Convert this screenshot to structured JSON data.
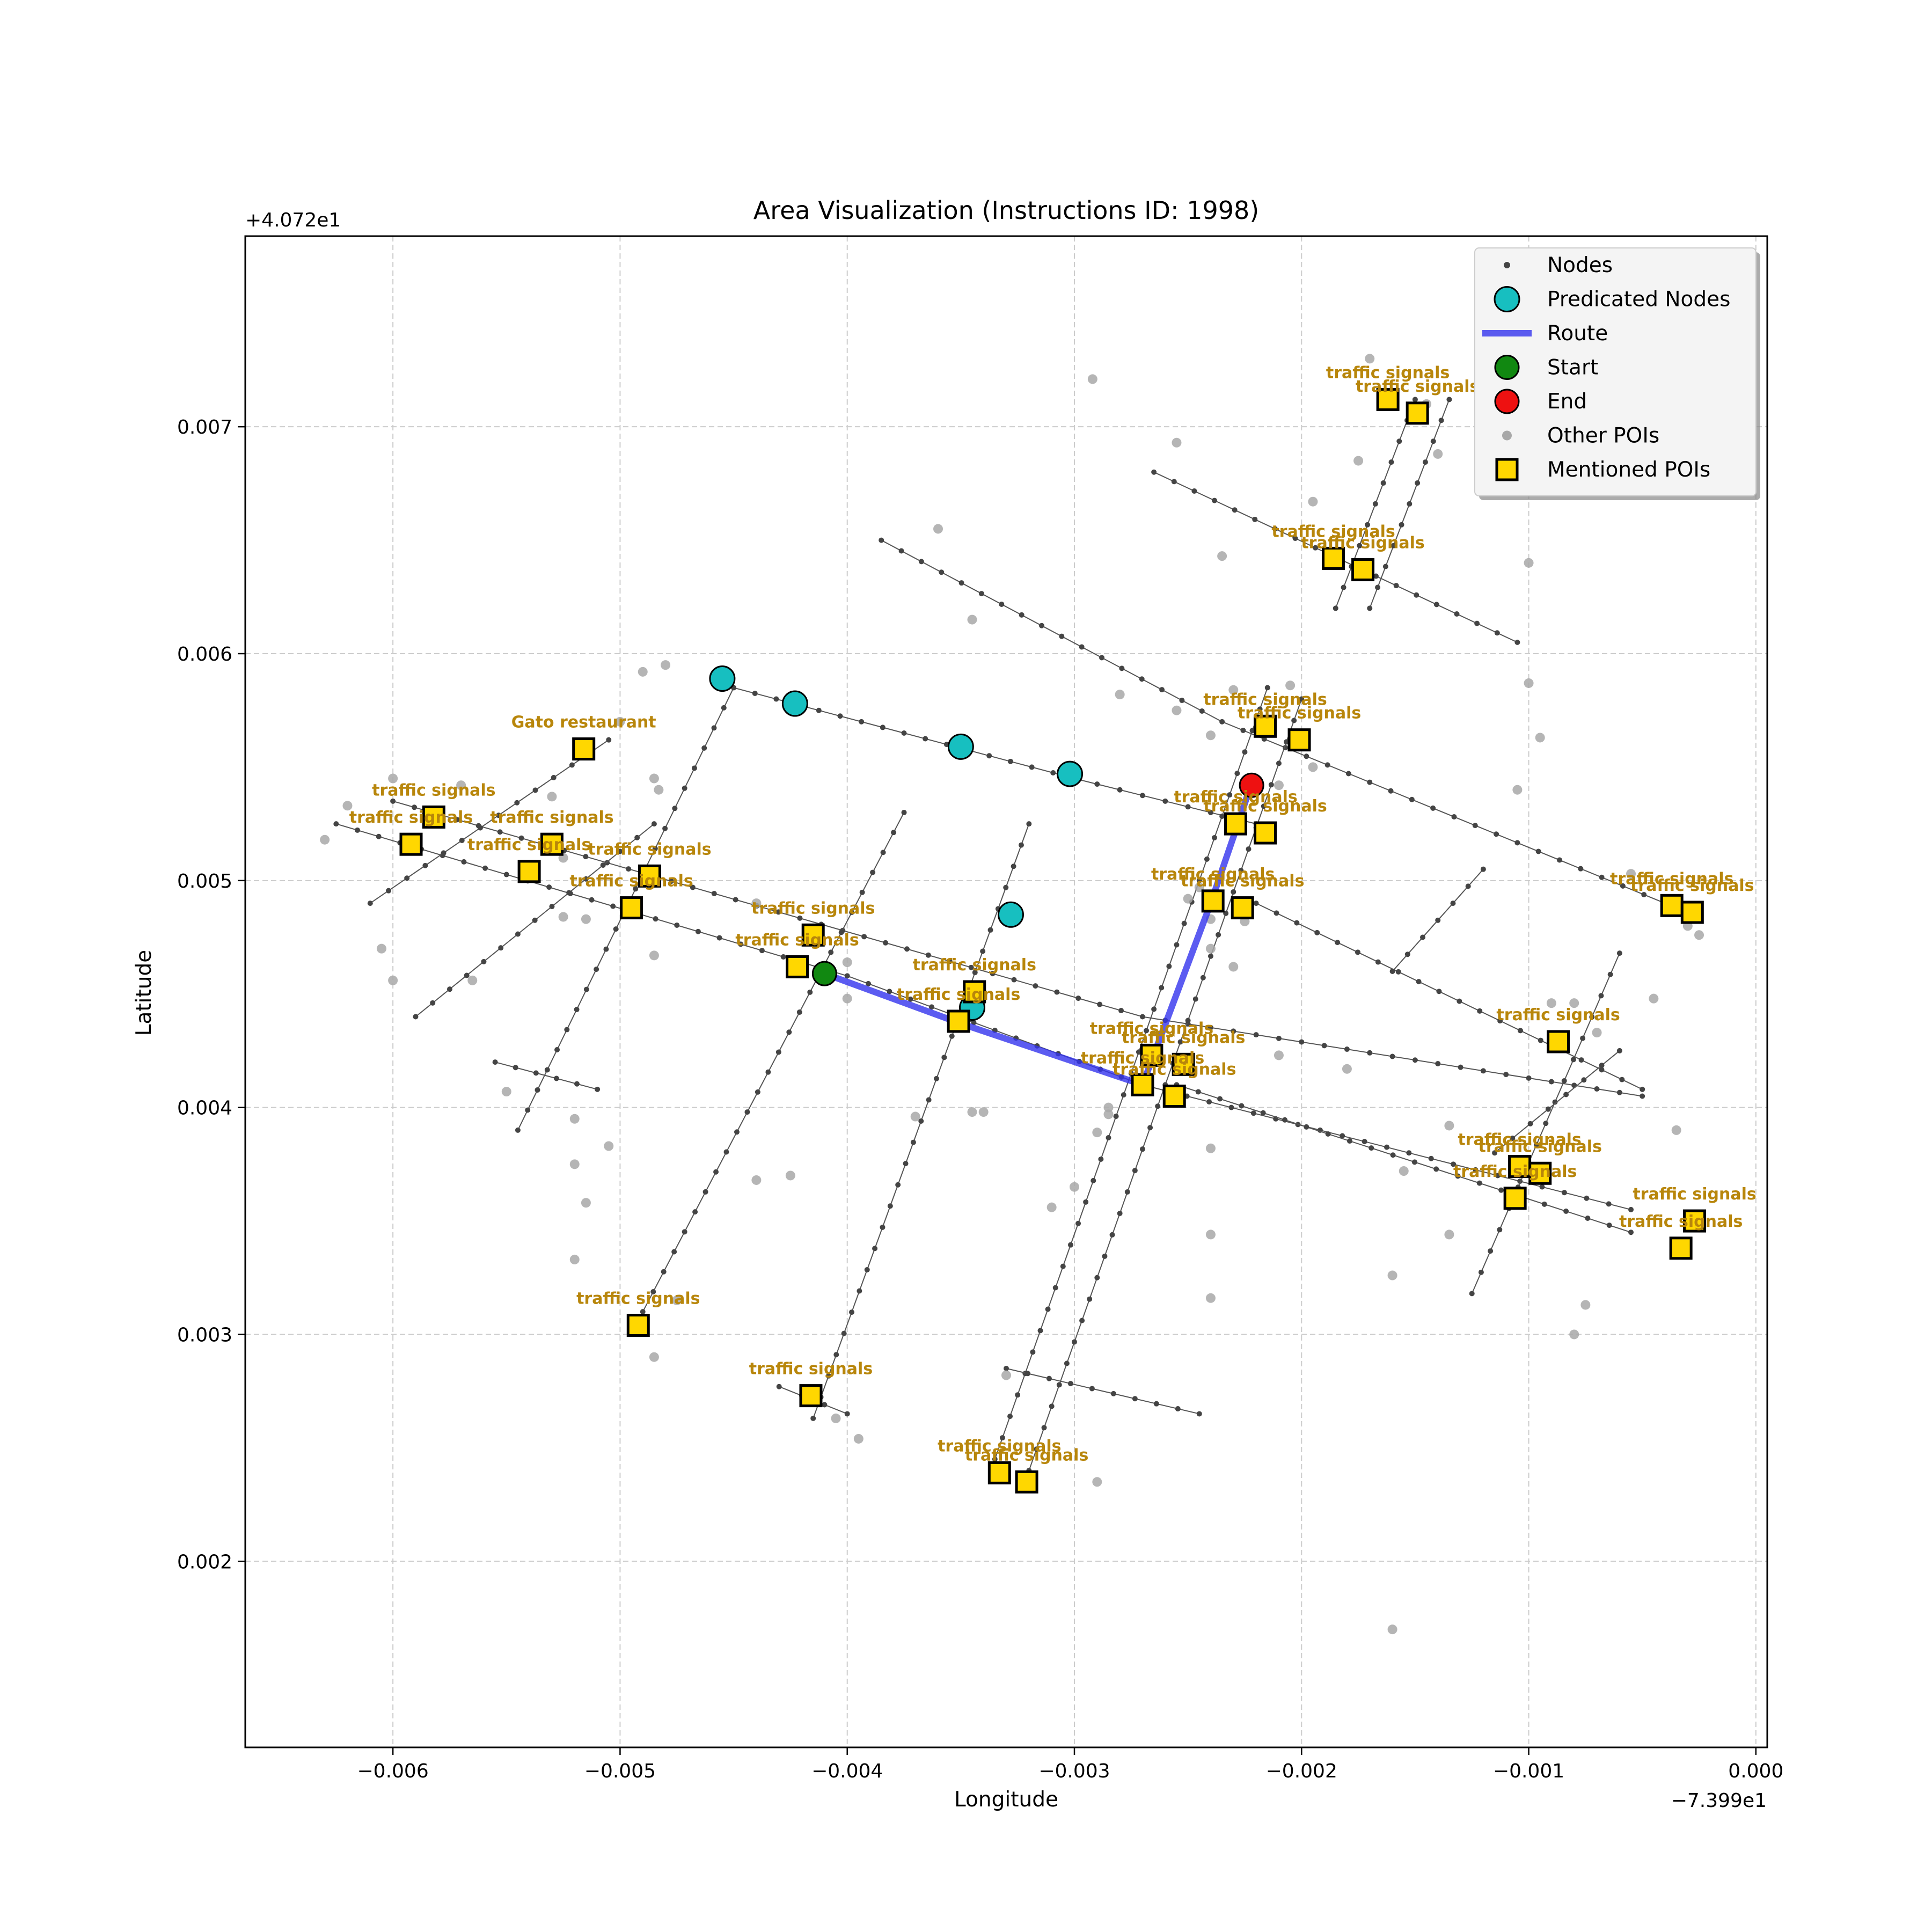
{
  "chart_data": {
    "type": "scatter",
    "title": "Area Visualization (Instructions ID: 1998)",
    "xlabel": "Longitude",
    "ylabel": "Latitude",
    "x_offset_label": "−7.399e1",
    "y_offset_label": "+4.072e1",
    "xlim": [
      -0.00665,
      5e-05
    ],
    "ylim": [
      0.00118,
      0.00784
    ],
    "x_ticks": [
      -0.006,
      -0.005,
      -0.004,
      -0.003,
      -0.002,
      -0.001,
      0.0
    ],
    "x_tick_labels": [
      "−0.006",
      "−0.005",
      "−0.004",
      "−0.003",
      "−0.002",
      "−0.001",
      "0.000"
    ],
    "y_ticks": [
      0.002,
      0.003,
      0.004,
      0.005,
      0.006,
      0.007
    ],
    "y_tick_labels": [
      "0.002",
      "0.003",
      "0.004",
      "0.005",
      "0.006",
      "0.007"
    ],
    "grid": true,
    "legend": {
      "position": "top-right",
      "entries": [
        {
          "label": "Nodes",
          "kind": "node"
        },
        {
          "label": "Predicated Nodes",
          "kind": "pred"
        },
        {
          "label": "Route",
          "kind": "route"
        },
        {
          "label": "Start",
          "kind": "start"
        },
        {
          "label": "End",
          "kind": "end"
        },
        {
          "label": "Other POIs",
          "kind": "other"
        },
        {
          "label": "Mentioned POIs",
          "kind": "poi"
        }
      ]
    },
    "colors": {
      "node": "#444444",
      "edge": "#555555",
      "predicated": "#17bfc0",
      "route": "#3333ee",
      "start": "#118811",
      "end": "#ee1111",
      "other_poi": "#a8a8a8",
      "mentioned_poi": "#ffd700",
      "poi_label": "#b8860b",
      "grid": "#cccccc"
    },
    "roads": [
      [
        [
          -0.00385,
          0.0065
        ],
        [
          -0.00235,
          0.0057
        ],
        [
          -0.0004,
          0.0049
        ]
      ],
      [
        [
          -0.0045,
          0.00585
        ],
        [
          -0.003,
          0.00545
        ],
        [
          -0.0022,
          0.00525
        ]
      ],
      [
        [
          -0.00625,
          0.00525
        ],
        [
          -0.004,
          0.00458
        ],
        [
          -0.0027,
          0.0041
        ],
        [
          -0.00055,
          0.00355
        ]
      ],
      [
        [
          -0.006,
          0.00535
        ],
        [
          -0.0027,
          0.0044
        ],
        [
          -0.0005,
          0.00405
        ]
      ],
      [
        [
          -0.0022,
          0.0049
        ],
        [
          -0.0005,
          0.00408
        ]
      ],
      [
        [
          -0.00255,
          0.0041
        ],
        [
          -0.00055,
          0.00345
        ]
      ],
      [
        [
          -0.00265,
          0.0068
        ],
        [
          -0.00105,
          0.00605
        ]
      ],
      [
        [
          -0.0061,
          0.0049
        ],
        [
          -0.00505,
          0.00562
        ]
      ],
      [
        [
          -0.0059,
          0.0044
        ],
        [
          -0.00485,
          0.00525
        ]
      ],
      [
        [
          -0.00545,
          0.0039
        ],
        [
          -0.0045,
          0.00585
        ]
      ],
      [
        [
          -0.0049,
          0.0031
        ],
        [
          -0.00375,
          0.0053
        ]
      ],
      [
        [
          -0.00415,
          0.00263
        ],
        [
          -0.0032,
          0.00525
        ]
      ],
      [
        [
          -0.0032,
          0.0024
        ],
        [
          -0.002,
          0.0058
        ]
      ],
      [
        [
          -0.00335,
          0.00245
        ],
        [
          -0.00215,
          0.00585
        ]
      ],
      [
        [
          -0.00185,
          0.0062
        ],
        [
          -0.0015,
          0.00712
        ]
      ],
      [
        [
          -0.0017,
          0.0062
        ],
        [
          -0.00135,
          0.00712
        ]
      ],
      [
        [
          -0.0033,
          0.00285
        ],
        [
          -0.00245,
          0.00265
        ]
      ],
      [
        [
          -0.00555,
          0.0042
        ],
        [
          -0.0051,
          0.00408
        ]
      ],
      [
        [
          -0.0043,
          0.00277
        ],
        [
          -0.004,
          0.00265
        ]
      ],
      [
        [
          -0.00125,
          0.00318
        ],
        [
          -0.0006,
          0.00468
        ]
      ],
      [
        [
          -0.00115,
          0.0038
        ],
        [
          -0.0006,
          0.00425
        ]
      ],
      [
        [
          -0.0016,
          0.0046
        ],
        [
          -0.0012,
          0.00505
        ]
      ]
    ],
    "other_pois": [
      [
        -0.0063,
        0.00518
      ],
      [
        -0.0062,
        0.00533
      ],
      [
        -0.006,
        0.00545
      ],
      [
        -0.0057,
        0.00542
      ],
      [
        -0.00605,
        0.0047
      ],
      [
        -0.006,
        0.00456
      ],
      [
        -0.00565,
        0.00456
      ],
      [
        -0.0055,
        0.00407
      ],
      [
        -0.0053,
        0.00537
      ],
      [
        -0.00525,
        0.0051
      ],
      [
        -0.00525,
        0.00484
      ],
      [
        -0.00515,
        0.00483
      ],
      [
        -0.0052,
        0.00395
      ],
      [
        -0.00505,
        0.00383
      ],
      [
        -0.0052,
        0.00375
      ],
      [
        -0.00515,
        0.00358
      ],
      [
        -0.0052,
        0.00333
      ],
      [
        -0.005,
        0.0057
      ],
      [
        -0.0049,
        0.00592
      ],
      [
        -0.0048,
        0.00595
      ],
      [
        -0.00485,
        0.00545
      ],
      [
        -0.00483,
        0.0054
      ],
      [
        -0.00485,
        0.00467
      ],
      [
        -0.00475,
        0.00315
      ],
      [
        -0.00485,
        0.0029
      ],
      [
        -0.00425,
        0.0037
      ],
      [
        -0.0044,
        0.00368
      ],
      [
        -0.0044,
        0.0049
      ],
      [
        -0.004,
        0.00464
      ],
      [
        -0.004,
        0.00448
      ],
      [
        -0.0037,
        0.00396
      ],
      [
        -0.0036,
        0.00655
      ],
      [
        -0.00345,
        0.00615
      ],
      [
        -0.00345,
        0.00398
      ],
      [
        -0.0034,
        0.00398
      ],
      [
        -0.0033,
        0.00282
      ],
      [
        -0.00395,
        0.00254
      ],
      [
        -0.00405,
        0.00263
      ],
      [
        -0.0031,
        0.00356
      ],
      [
        -0.003,
        0.00365
      ],
      [
        -0.0029,
        0.00389
      ],
      [
        -0.00285,
        0.004
      ],
      [
        -0.00285,
        0.00397
      ],
      [
        -0.0028,
        0.00582
      ],
      [
        -0.00255,
        0.00575
      ],
      [
        -0.00255,
        0.00693
      ],
      [
        -0.0025,
        0.00492
      ],
      [
        -0.00245,
        0.00497
      ],
      [
        -0.0024,
        0.0047
      ],
      [
        -0.00225,
        0.00482
      ],
      [
        -0.0023,
        0.00462
      ],
      [
        -0.0024,
        0.00483
      ],
      [
        -0.0024,
        0.00382
      ],
      [
        -0.0024,
        0.00344
      ],
      [
        -0.0024,
        0.00316
      ],
      [
        -0.0029,
        0.00235
      ],
      [
        -0.00292,
        0.00721
      ],
      [
        -0.00235,
        0.00643
      ],
      [
        -0.0023,
        0.00584
      ],
      [
        -0.0024,
        0.00564
      ],
      [
        -0.0021,
        0.00542
      ],
      [
        -0.00205,
        0.00586
      ],
      [
        -0.00195,
        0.0055
      ],
      [
        -0.00195,
        0.00667
      ],
      [
        -0.0021,
        0.00423
      ],
      [
        -0.0018,
        0.00417
      ],
      [
        -0.00175,
        0.00685
      ],
      [
        -0.0017,
        0.0073
      ],
      [
        -0.00145,
        0.0071
      ],
      [
        -0.0014,
        0.00688
      ],
      [
        -0.00105,
        0.0054
      ],
      [
        -0.001,
        0.00587
      ],
      [
        -0.00095,
        0.00563
      ],
      [
        -0.001,
        0.0064
      ],
      [
        -0.0009,
        0.00446
      ],
      [
        -0.0008,
        0.00446
      ],
      [
        -0.00135,
        0.00392
      ],
      [
        -0.00135,
        0.00344
      ],
      [
        -0.00155,
        0.00372
      ],
      [
        -0.0016,
        0.00326
      ],
      [
        -0.0008,
        0.003
      ],
      [
        -0.00075,
        0.00313
      ],
      [
        -0.0007,
        0.00433
      ],
      [
        -0.00055,
        0.00503
      ],
      [
        -0.00045,
        0.00448
      ],
      [
        -0.00035,
        0.0039
      ],
      [
        -0.0003,
        0.0048
      ],
      [
        -0.00025,
        0.00476
      ],
      [
        -0.0016,
        0.0017
      ]
    ],
    "route": [
      [
        -0.0041,
        0.00459
      ],
      [
        -0.0035,
        0.00437
      ],
      [
        -0.0027,
        0.0041
      ],
      [
        -0.0024,
        0.0049
      ],
      [
        -0.00228,
        0.00525
      ],
      [
        -0.00222,
        0.00543
      ]
    ],
    "predicated_nodes": [
      [
        -0.00455,
        0.00589
      ],
      [
        -0.00423,
        0.00578
      ],
      [
        -0.0035,
        0.00559
      ],
      [
        -0.00302,
        0.00547
      ],
      [
        -0.00328,
        0.00485
      ],
      [
        -0.00345,
        0.00444
      ]
    ],
    "start": [
      -0.0041,
      0.00459
    ],
    "end": [
      -0.00222,
      0.00542
    ],
    "mentioned_pois": [
      {
        "label": "traffic signals",
        "x": -0.00162,
        "y": 0.00712
      },
      {
        "label": "traffic signals",
        "x": -0.00149,
        "y": 0.00706
      },
      {
        "label": "traffic signals",
        "x": -0.00186,
        "y": 0.00642
      },
      {
        "label": "traffic signals",
        "x": -0.00173,
        "y": 0.00637
      },
      {
        "label": "traffic signals",
        "x": -0.00216,
        "y": 0.00568
      },
      {
        "label": "traffic signals",
        "x": -0.00201,
        "y": 0.00562
      },
      {
        "label": "traffic signals",
        "x": -0.00229,
        "y": 0.00525
      },
      {
        "label": "traffic signals",
        "x": -0.00216,
        "y": 0.00521
      },
      {
        "label": "traffic signals",
        "x": -0.00239,
        "y": 0.00491
      },
      {
        "label": "traffic signals",
        "x": -0.00226,
        "y": 0.00488
      },
      {
        "label": "traffic signals",
        "x": -0.00037,
        "y": 0.00489
      },
      {
        "label": "traffic signals",
        "x": -0.00028,
        "y": 0.00486
      },
      {
        "label": "traffic signals",
        "x": -0.00087,
        "y": 0.00429
      },
      {
        "label": "traffic signals",
        "x": -0.00266,
        "y": 0.00423
      },
      {
        "label": "traffic signals",
        "x": -0.00252,
        "y": 0.00419
      },
      {
        "label": "traffic signals",
        "x": -0.0027,
        "y": 0.0041
      },
      {
        "label": "traffic signals",
        "x": -0.00256,
        "y": 0.00405
      },
      {
        "label": "traffic signals",
        "x": -0.00104,
        "y": 0.00374
      },
      {
        "label": "traffic signals",
        "x": -0.00095,
        "y": 0.00371
      },
      {
        "label": "traffic signals",
        "x": -0.00106,
        "y": 0.0036
      },
      {
        "label": "traffic signals",
        "x": -0.00027,
        "y": 0.0035
      },
      {
        "label": "traffic signals",
        "x": -0.00033,
        "y": 0.00338
      },
      {
        "label": "traffic signals",
        "x": -0.00344,
        "y": 0.00451
      },
      {
        "label": "traffic signals",
        "x": -0.00351,
        "y": 0.00438
      },
      {
        "label": "traffic signals",
        "x": -0.00415,
        "y": 0.00476
      },
      {
        "label": "traffic signals",
        "x": -0.00422,
        "y": 0.00462
      },
      {
        "label": "traffic signals",
        "x": -0.00487,
        "y": 0.00502
      },
      {
        "label": "traffic signals",
        "x": -0.00495,
        "y": 0.00488
      },
      {
        "label": "traffic signals",
        "x": -0.0053,
        "y": 0.00516
      },
      {
        "label": "traffic signals",
        "x": -0.0054,
        "y": 0.00504
      },
      {
        "label": "traffic signals",
        "x": -0.00582,
        "y": 0.00528
      },
      {
        "label": "traffic signals",
        "x": -0.00592,
        "y": 0.00516
      },
      {
        "label": "traffic signals",
        "x": -0.00492,
        "y": 0.00304
      },
      {
        "label": "traffic signals",
        "x": -0.00416,
        "y": 0.00273
      },
      {
        "label": "traffic signals",
        "x": -0.00333,
        "y": 0.00239
      },
      {
        "label": "traffic signals",
        "x": -0.00321,
        "y": 0.00235
      },
      {
        "label": "Gato restaurant",
        "x": -0.00516,
        "y": 0.00558
      }
    ]
  }
}
